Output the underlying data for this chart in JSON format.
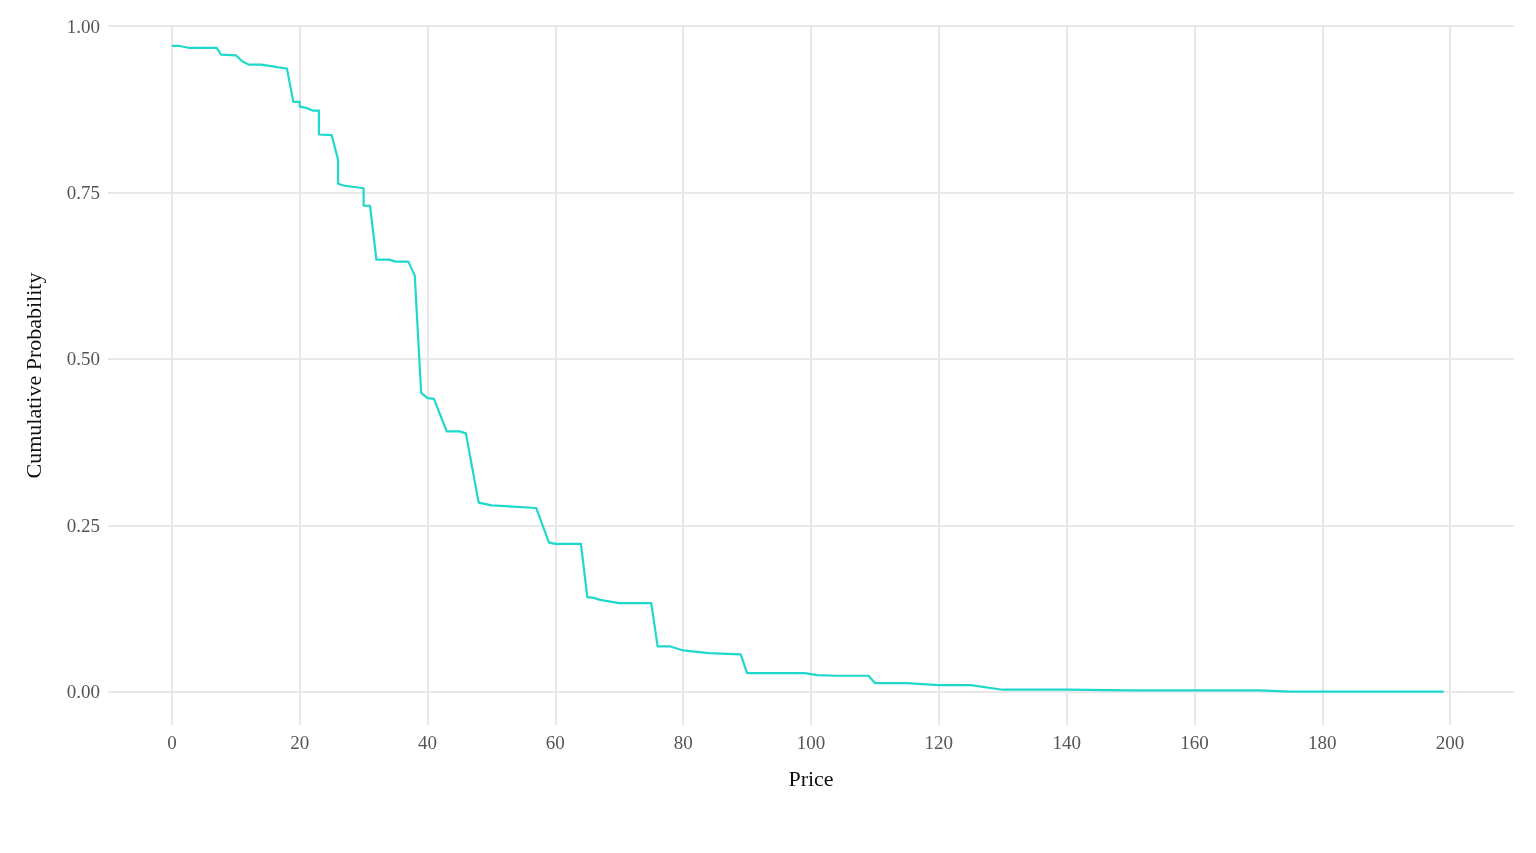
{
  "chart_data": {
    "type": "line",
    "xlabel": "Price",
    "ylabel": "Cumulative Probability",
    "xlim": [
      -10,
      210
    ],
    "ylim": [
      -0.05,
      1.0
    ],
    "xticks": [
      0,
      20,
      40,
      60,
      80,
      100,
      120,
      140,
      160,
      180,
      200
    ],
    "yticks": [
      {
        "value": 0,
        "label": "0.00"
      },
      {
        "value": 0.25,
        "label": "0.25"
      },
      {
        "value": 0.5,
        "label": "0.50"
      },
      {
        "value": 0.75,
        "label": "0.75"
      },
      {
        "value": 1,
        "label": "1.00"
      }
    ],
    "grid": true,
    "marker": "none",
    "line_style": "solid",
    "series": [
      {
        "color": "#1fd8cc",
        "x": [
          0,
          1.2,
          2.8,
          7,
          7.7,
          10,
          11,
          12,
          14,
          16,
          16.6,
          18,
          19,
          20,
          20,
          21,
          22,
          23,
          23,
          25,
          26,
          26,
          27,
          29.5,
          30,
          30,
          31,
          32,
          34,
          35,
          37,
          38,
          39,
          40,
          41,
          43,
          45,
          46,
          48,
          50,
          57,
          59,
          60,
          64,
          65,
          66,
          67,
          70,
          75,
          76,
          78,
          80,
          84,
          89,
          90,
          99,
          101,
          104,
          109,
          110,
          115,
          120,
          125,
          130,
          140,
          150,
          170,
          175,
          199
        ],
        "values": [
          0.97,
          0.97,
          0.967,
          0.967,
          0.957,
          0.956,
          0.947,
          0.942,
          0.942,
          0.939,
          0.938,
          0.936,
          0.886,
          0.886,
          0.879,
          0.877,
          0.873,
          0.873,
          0.837,
          0.836,
          0.799,
          0.763,
          0.76,
          0.757,
          0.756,
          0.73,
          0.73,
          0.649,
          0.649,
          0.646,
          0.646,
          0.625,
          0.449,
          0.441,
          0.44,
          0.391,
          0.391,
          0.388,
          0.284,
          0.28,
          0.276,
          0.224,
          0.222,
          0.222,
          0.142,
          0.141,
          0.138,
          0.133,
          0.133,
          0.068,
          0.068,
          0.062,
          0.058,
          0.056,
          0.028,
          0.028,
          0.025,
          0.024,
          0.024,
          0.013,
          0.013,
          0.01,
          0.01,
          0.003,
          0.003,
          0.002,
          0.002,
          0,
          0
        ]
      }
    ]
  }
}
